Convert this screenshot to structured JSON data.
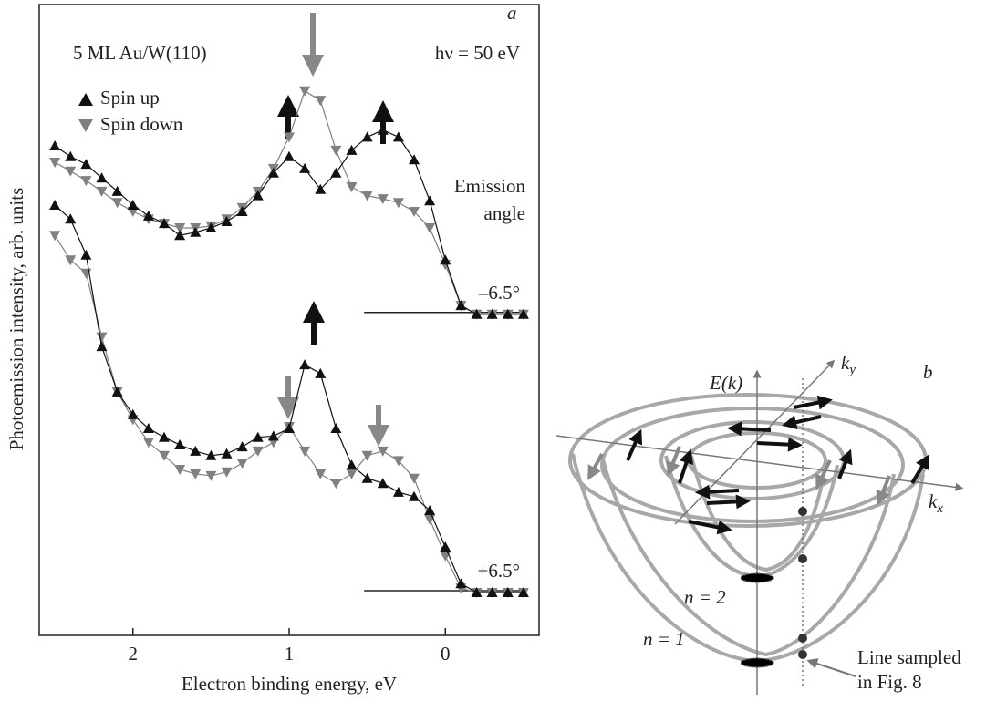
{
  "chart_data": {
    "type": "line",
    "panel_label": "a",
    "title": "5 ML Au/W(110)",
    "subtitle": "hν = 50 eV",
    "xlabel": "Electron binding energy, eV",
    "ylabel": "Photoemission intensity, arb. units",
    "annotation": [
      "Emission",
      "angle"
    ],
    "emission_angles": [
      "–6.5°",
      "+6.5°"
    ],
    "xlim": [
      2.6,
      -0.6
    ],
    "xticks": [
      2,
      1,
      0
    ],
    "ylim": [
      0,
      100
    ],
    "x": [
      2.5,
      2.4,
      2.3,
      2.2,
      2.1,
      2.0,
      1.9,
      1.8,
      1.7,
      1.6,
      1.5,
      1.4,
      1.3,
      1.2,
      1.1,
      1.0,
      0.9,
      0.8,
      0.7,
      0.6,
      0.5,
      0.4,
      0.3,
      0.2,
      0.1,
      0.0,
      -0.1,
      -0.2,
      -0.3,
      -0.4,
      -0.5
    ],
    "series": [
      {
        "name": "Spin up",
        "color": "#111111",
        "marker": "triangle-up",
        "values": [
          [
            77.6,
            75.9,
            74.7,
            72.5,
            70.4,
            68.2,
            66.5,
            65.3,
            63.4,
            63.9,
            64.6,
            65.6,
            67.2,
            69.7,
            73.3,
            75.9,
            74.0,
            70.7,
            73.3,
            76.9,
            79.0,
            80.1,
            79.0,
            75.4,
            68.9,
            59.5,
            52.3,
            50.9,
            50.9,
            50.9,
            50.9
          ],
          [
            68.2,
            66.0,
            60.3,
            45.8,
            38.6,
            35.0,
            32.8,
            31.4,
            30.2,
            29.2,
            28.5,
            28.8,
            29.9,
            31.4,
            31.6,
            32.8,
            42.9,
            41.5,
            32.8,
            27.0,
            24.9,
            24.1,
            22.7,
            22.0,
            19.8,
            14.0,
            8.2,
            6.8,
            6.8,
            6.8,
            6.8
          ]
        ]
      },
      {
        "name": "Spin down",
        "color": "#808080",
        "marker": "triangle-down",
        "values": [
          [
            75.0,
            73.6,
            72.1,
            70.4,
            68.6,
            67.2,
            66.0,
            65.3,
            64.6,
            64.6,
            64.9,
            66.0,
            67.8,
            70.4,
            74.0,
            79.0,
            86.3,
            84.8,
            76.9,
            71.1,
            69.7,
            69.2,
            68.6,
            67.2,
            64.6,
            58.8,
            52.3,
            50.9,
            50.9,
            50.9,
            50.9
          ],
          [
            63.4,
            59.5,
            57.4,
            47.3,
            38.6,
            34.2,
            30.6,
            28.5,
            26.3,
            25.6,
            25.3,
            25.9,
            27.3,
            29.2,
            30.6,
            33.1,
            29.2,
            25.6,
            24.1,
            25.6,
            28.5,
            29.2,
            27.7,
            24.9,
            18.4,
            12.6,
            7.5,
            6.8,
            6.8,
            6.8,
            6.8
          ]
        ]
      }
    ]
  },
  "diagram": {
    "panel_label": "b",
    "energy_axis": "E(k)",
    "ky": {
      "base": "k",
      "sub": "y"
    },
    "kx": {
      "base": "k",
      "sub": "x"
    },
    "bands": [
      "n = 2",
      "n = 1"
    ],
    "note": [
      "Line sampled",
      "in Fig. 8"
    ]
  }
}
